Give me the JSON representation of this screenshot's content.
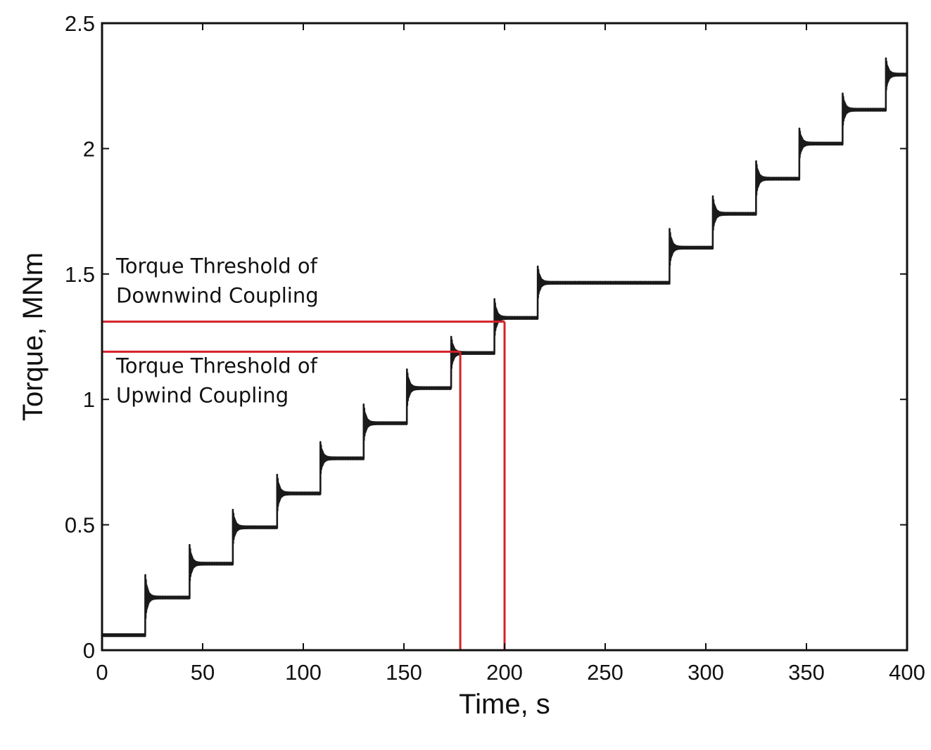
{
  "chart_data": {
    "type": "line",
    "title": "",
    "xlabel": "Time, s",
    "ylabel": "Torque, MNm",
    "xlim": [
      0,
      400
    ],
    "ylim": [
      0,
      2.5
    ],
    "x_ticks": [
      "0",
      "50",
      "100",
      "150",
      "200",
      "250",
      "300",
      "350",
      "400"
    ],
    "y_ticks": [
      "0",
      "0.5",
      "1",
      "1.5",
      "2",
      "2.5"
    ],
    "grid": false,
    "legend": "none",
    "series": [
      {
        "color": "#1a1a1a",
        "steps": [
          {
            "x_start": 0,
            "x_end": 21.5,
            "level": 0.06,
            "peak": 0.06
          },
          {
            "x_start": 21.5,
            "x_end": 43.5,
            "level": 0.21,
            "peak": 0.3
          },
          {
            "x_start": 43.5,
            "x_end": 65,
            "level": 0.345,
            "peak": 0.42
          },
          {
            "x_start": 65,
            "x_end": 87,
            "level": 0.49,
            "peak": 0.56
          },
          {
            "x_start": 87,
            "x_end": 108.5,
            "level": 0.625,
            "peak": 0.7
          },
          {
            "x_start": 108.5,
            "x_end": 130,
            "level": 0.765,
            "peak": 0.83
          },
          {
            "x_start": 130,
            "x_end": 151.5,
            "level": 0.905,
            "peak": 0.98
          },
          {
            "x_start": 151.5,
            "x_end": 173.5,
            "level": 1.045,
            "peak": 1.12
          },
          {
            "x_start": 173.5,
            "x_end": 195,
            "level": 1.185,
            "peak": 1.25
          },
          {
            "x_start": 195,
            "x_end": 216.5,
            "level": 1.325,
            "peak": 1.4
          },
          {
            "x_start": 216.5,
            "x_end": 282,
            "level": 1.465,
            "peak": 1.53
          },
          {
            "x_start": 282,
            "x_end": 303.5,
            "level": 1.605,
            "peak": 1.68
          },
          {
            "x_start": 303.5,
            "x_end": 325,
            "level": 1.74,
            "peak": 1.81
          },
          {
            "x_start": 325,
            "x_end": 346.5,
            "level": 1.88,
            "peak": 1.95
          },
          {
            "x_start": 346.5,
            "x_end": 368,
            "level": 2.02,
            "peak": 2.08
          },
          {
            "x_start": 368,
            "x_end": 389.5,
            "level": 2.155,
            "peak": 2.22
          },
          {
            "x_start": 389.5,
            "x_end": 400,
            "level": 2.295,
            "peak": 2.36
          }
        ]
      }
    ],
    "thresholds": [
      {
        "label_lines": [
          "Torque Threshold of",
          "Downwind Coupling"
        ],
        "y": 1.31,
        "x": 200,
        "color": "#d42027"
      },
      {
        "label_lines": [
          "Torque Threshold of",
          "Upwind Coupling"
        ],
        "y": 1.19,
        "x": 178,
        "color": "#d42027"
      }
    ]
  }
}
